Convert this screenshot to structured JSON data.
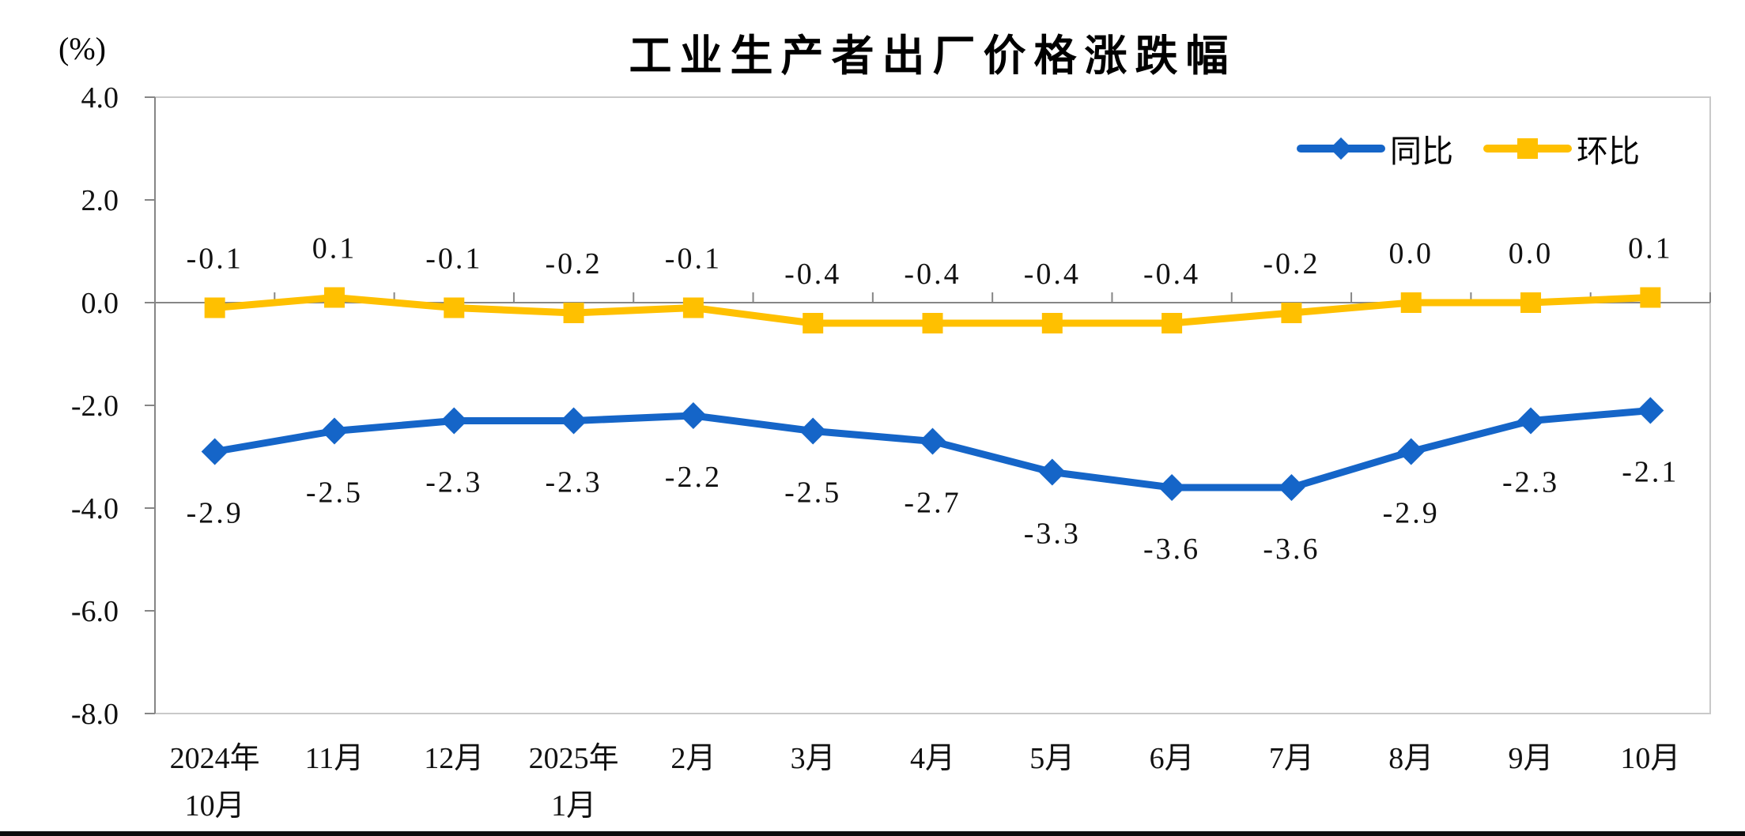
{
  "title": "工业生产者出厂价格涨跌幅",
  "y_axis": {
    "unit_label": "(%)",
    "tick_values": [
      4.0,
      2.0,
      0.0,
      -2.0,
      -4.0,
      -6.0,
      -8.0
    ],
    "tick_labels": [
      "4.0",
      "2.0",
      "0.0",
      "-2.0",
      "-4.0",
      "-6.0",
      "-8.0"
    ]
  },
  "legend": {
    "items": [
      {
        "label": "同比",
        "color": "#1565C8",
        "marker": "diamond"
      },
      {
        "label": "环比",
        "color": "#FFC000",
        "marker": "square"
      }
    ]
  },
  "colors": {
    "yoy_blue": "#1565C8",
    "mom_gold": "#FFC000",
    "axis_gray": "#868686",
    "border_gray": "#c9c9c9",
    "text_black": "#111111"
  },
  "chart_data": {
    "type": "line",
    "title": "工业生产者出厂价格涨跌幅",
    "ylabel": "(%)",
    "ylim": [
      -8.0,
      4.0
    ],
    "ytick_step": 2.0,
    "grid": false,
    "legend_position": "top-right",
    "categories": [
      "2024年10月",
      "11月",
      "12月",
      "2025年1月",
      "2月",
      "3月",
      "4月",
      "5月",
      "6月",
      "7月",
      "8月",
      "9月",
      "10月"
    ],
    "categories_display": [
      [
        "2024年",
        "10月"
      ],
      [
        "11月"
      ],
      [
        "12月"
      ],
      [
        "2025年",
        "1月"
      ],
      [
        "2月"
      ],
      [
        "3月"
      ],
      [
        "4月"
      ],
      [
        "5月"
      ],
      [
        "6月"
      ],
      [
        "7月"
      ],
      [
        "8月"
      ],
      [
        "9月"
      ],
      [
        "10月"
      ]
    ],
    "series": [
      {
        "name": "同比",
        "color": "#1565C8",
        "marker": "diamond",
        "label_position": "below",
        "values": [
          -2.9,
          -2.5,
          -2.3,
          -2.3,
          -2.2,
          -2.5,
          -2.7,
          -3.3,
          -3.6,
          -3.6,
          -2.9,
          -2.3,
          -2.1
        ],
        "labels": [
          "-2.9",
          "-2.5",
          "-2.3",
          "-2.3",
          "-2.2",
          "-2.5",
          "-2.7",
          "-3.3",
          "-3.6",
          "-3.6",
          "-2.9",
          "-2.3",
          "-2.1"
        ]
      },
      {
        "name": "环比",
        "color": "#FFC000",
        "marker": "square",
        "label_position": "above",
        "values": [
          -0.1,
          0.1,
          -0.1,
          -0.2,
          -0.1,
          -0.4,
          -0.4,
          -0.4,
          -0.4,
          -0.2,
          0.0,
          0.0,
          0.1
        ],
        "labels": [
          "-0.1",
          "0.1",
          "-0.1",
          "-0.2",
          "-0.1",
          "-0.4",
          "-0.4",
          "-0.4",
          "-0.4",
          "-0.2",
          "0.0",
          "0.0",
          "0.1"
        ]
      }
    ]
  }
}
